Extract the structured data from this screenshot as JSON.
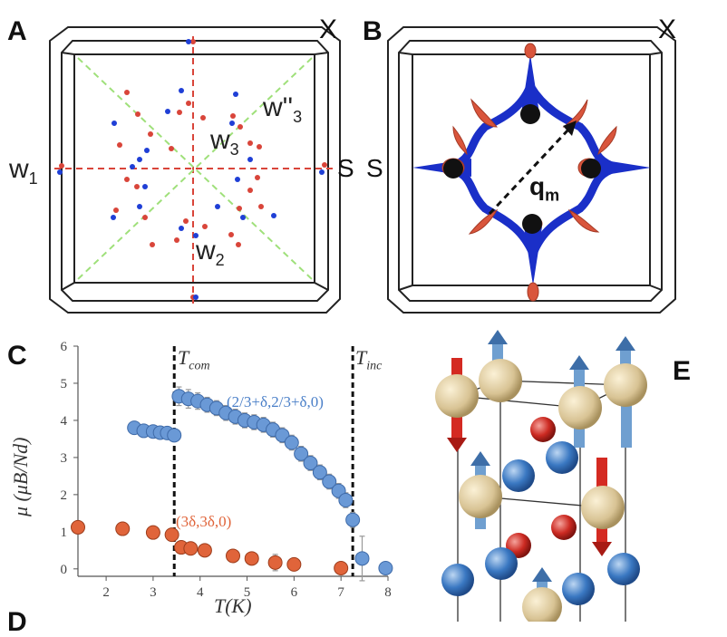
{
  "panel_labels": {
    "a": "A",
    "b": "B",
    "c": "C",
    "d": "D",
    "e": "E"
  },
  "panel_a": {
    "labels": {
      "w1": "w",
      "w1_sub": "1",
      "w2": "w",
      "w2_sub": "2",
      "w3": "w",
      "w3_sub": "3",
      "w3pp": "w''",
      "w3pp_sub": "3",
      "s": "S",
      "x": "X"
    },
    "colors": {
      "red": "#d9453a",
      "blue": "#1f3fd6",
      "red_dash": "#d9453a",
      "green_dash": "#9fe07a"
    }
  },
  "panel_b": {
    "labels": {
      "s": "S",
      "x": "X",
      "q": "q",
      "q_sub": "m"
    },
    "colors": {
      "blue": "#1a2fc8",
      "red": "#d9553c",
      "black": "#111111"
    }
  },
  "panel_e": {
    "colors": {
      "gold": "#d8c394",
      "blue_atom": "#3a78c2",
      "red_atom": "#cc2a22",
      "arrow_blue": "#6f9fd0",
      "arrow_red": "#d42a22"
    }
  },
  "chart_data": {
    "type": "scatter",
    "xlabel": "T(K)",
    "ylabel": "μ (μB/Nd)",
    "xlim": [
      1.4,
      8
    ],
    "ylim": [
      -0.2,
      6
    ],
    "xticks": [
      2,
      3,
      4,
      5,
      6,
      7,
      8
    ],
    "yticks": [
      0,
      1,
      2,
      3,
      4,
      5,
      6
    ],
    "vlines": [
      {
        "x": 3.45,
        "label": "T",
        "label_sub": "com"
      },
      {
        "x": 7.25,
        "label": "T",
        "label_sub": "inc"
      }
    ],
    "series": [
      {
        "name": "(2/3+δ,2/3+δ,0)",
        "color": "#6a99d6",
        "points": [
          {
            "x": 2.6,
            "y": 3.8
          },
          {
            "x": 2.8,
            "y": 3.72
          },
          {
            "x": 3.0,
            "y": 3.7
          },
          {
            "x": 3.15,
            "y": 3.67
          },
          {
            "x": 3.3,
            "y": 3.66
          },
          {
            "x": 3.45,
            "y": 3.6
          },
          {
            "x": 3.55,
            "y": 4.65,
            "err": 0.25
          },
          {
            "x": 3.75,
            "y": 4.58,
            "err": 0.25
          },
          {
            "x": 3.95,
            "y": 4.52,
            "err": 0.22
          },
          {
            "x": 4.15,
            "y": 4.42,
            "err": 0.2
          },
          {
            "x": 4.35,
            "y": 4.33,
            "err": 0.2
          },
          {
            "x": 4.55,
            "y": 4.2,
            "err": 0.2
          },
          {
            "x": 4.75,
            "y": 4.1,
            "err": 0.2
          },
          {
            "x": 4.95,
            "y": 4.0,
            "err": 0.2
          },
          {
            "x": 5.15,
            "y": 3.95,
            "err": 0.2
          },
          {
            "x": 5.35,
            "y": 3.88,
            "err": 0.2
          },
          {
            "x": 5.55,
            "y": 3.75,
            "err": 0.2
          },
          {
            "x": 5.75,
            "y": 3.6,
            "err": 0.2
          },
          {
            "x": 5.95,
            "y": 3.4,
            "err": 0.2
          },
          {
            "x": 6.15,
            "y": 3.1,
            "err": 0.2
          },
          {
            "x": 6.35,
            "y": 2.85,
            "err": 0.2
          },
          {
            "x": 6.55,
            "y": 2.6,
            "err": 0.2
          },
          {
            "x": 6.75,
            "y": 2.35,
            "err": 0.2
          },
          {
            "x": 6.95,
            "y": 2.1,
            "err": 0.2
          },
          {
            "x": 7.1,
            "y": 1.85,
            "err": 0.2
          },
          {
            "x": 7.25,
            "y": 1.32,
            "err": 0.2
          },
          {
            "x": 7.45,
            "y": 0.28,
            "err": 0.6
          },
          {
            "x": 7.95,
            "y": 0.02,
            "err": 0.0
          }
        ],
        "label": "(2/3+δ,2/3+δ,0)"
      },
      {
        "name": "(3δ,3δ,0)",
        "color": "#e0643a",
        "points": [
          {
            "x": 1.4,
            "y": 1.12
          },
          {
            "x": 2.35,
            "y": 1.08
          },
          {
            "x": 3.0,
            "y": 0.98
          },
          {
            "x": 3.4,
            "y": 0.92
          },
          {
            "x": 3.6,
            "y": 0.58
          },
          {
            "x": 3.8,
            "y": 0.55
          },
          {
            "x": 4.1,
            "y": 0.5
          },
          {
            "x": 4.7,
            "y": 0.35,
            "err": 0.15
          },
          {
            "x": 5.1,
            "y": 0.28,
            "err": 0.15
          },
          {
            "x": 5.6,
            "y": 0.17,
            "err": 0.22
          },
          {
            "x": 6.0,
            "y": 0.12,
            "err": 0.15
          },
          {
            "x": 7.0,
            "y": 0.02,
            "err": 0.08
          }
        ],
        "label": "(3δ,3δ,0)"
      }
    ]
  }
}
